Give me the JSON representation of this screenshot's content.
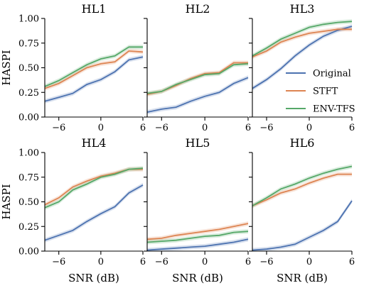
{
  "chart_data": {
    "type": "line",
    "layout": "2x3 small multiples",
    "x_ticks": [
      -6,
      0,
      6
    ],
    "y_ticks": [
      "0.00",
      "0.25",
      "0.50",
      "0.75",
      "1.00"
    ],
    "y_tick_values": [
      0,
      0.25,
      0.5,
      0.75,
      1.0
    ],
    "xlim": [
      -8,
      6
    ],
    "ylim": [
      0,
      1
    ],
    "xlabel": "SNR (dB)",
    "ylabel": "HASPI",
    "x": [
      -8,
      -6,
      -4,
      -2,
      0,
      2,
      4,
      6
    ],
    "legend": {
      "placement": "inside HL3, lower-right",
      "entries": [
        {
          "name": "Original",
          "color": "#4c72b0"
        },
        {
          "name": "STFT",
          "color": "#dd8452"
        },
        {
          "name": "ENV-TFS",
          "color": "#55a868"
        }
      ]
    },
    "panels": [
      {
        "title": "HL1",
        "series": [
          {
            "name": "Original",
            "values": [
              0.16,
              0.2,
              0.24,
              0.33,
              0.38,
              0.46,
              0.58,
              0.61
            ]
          },
          {
            "name": "STFT",
            "values": [
              0.29,
              0.34,
              0.42,
              0.5,
              0.54,
              0.56,
              0.67,
              0.66
            ]
          },
          {
            "name": "ENV-TFS",
            "values": [
              0.31,
              0.37,
              0.45,
              0.53,
              0.59,
              0.62,
              0.71,
              0.71
            ]
          }
        ]
      },
      {
        "title": "HL2",
        "series": [
          {
            "name": "Original",
            "values": [
              0.05,
              0.08,
              0.1,
              0.16,
              0.21,
              0.25,
              0.34,
              0.4
            ]
          },
          {
            "name": "STFT",
            "values": [
              0.23,
              0.26,
              0.32,
              0.39,
              0.44,
              0.45,
              0.55,
              0.55
            ]
          },
          {
            "name": "ENV-TFS",
            "values": [
              0.24,
              0.26,
              0.33,
              0.38,
              0.43,
              0.44,
              0.53,
              0.54
            ]
          }
        ]
      },
      {
        "title": "HL3",
        "series": [
          {
            "name": "Original",
            "values": [
              0.29,
              0.38,
              0.49,
              0.62,
              0.73,
              0.82,
              0.88,
              0.92
            ]
          },
          {
            "name": "STFT",
            "values": [
              0.61,
              0.67,
              0.76,
              0.81,
              0.85,
              0.87,
              0.89,
              0.89
            ]
          },
          {
            "name": "ENV-TFS",
            "values": [
              0.62,
              0.7,
              0.79,
              0.85,
              0.91,
              0.94,
              0.96,
              0.97
            ]
          }
        ]
      },
      {
        "title": "HL4",
        "series": [
          {
            "name": "Original",
            "values": [
              0.11,
              0.16,
              0.21,
              0.3,
              0.38,
              0.45,
              0.59,
              0.67
            ]
          },
          {
            "name": "STFT",
            "values": [
              0.47,
              0.54,
              0.65,
              0.71,
              0.76,
              0.79,
              0.83,
              0.83
            ]
          },
          {
            "name": "ENV-TFS",
            "values": [
              0.44,
              0.5,
              0.62,
              0.68,
              0.75,
              0.78,
              0.83,
              0.84
            ]
          }
        ]
      },
      {
        "title": "HL5",
        "series": [
          {
            "name": "Original",
            "values": [
              0.01,
              0.02,
              0.03,
              0.04,
              0.05,
              0.07,
              0.09,
              0.12
            ]
          },
          {
            "name": "STFT",
            "values": [
              0.12,
              0.13,
              0.16,
              0.18,
              0.2,
              0.22,
              0.25,
              0.28
            ]
          },
          {
            "name": "ENV-TFS",
            "values": [
              0.09,
              0.1,
              0.11,
              0.13,
              0.15,
              0.16,
              0.19,
              0.2
            ]
          }
        ]
      },
      {
        "title": "HL6",
        "series": [
          {
            "name": "Original",
            "values": [
              0.01,
              0.02,
              0.04,
              0.07,
              0.14,
              0.21,
              0.3,
              0.51
            ]
          },
          {
            "name": "STFT",
            "values": [
              0.46,
              0.52,
              0.59,
              0.63,
              0.69,
              0.74,
              0.78,
              0.78
            ]
          },
          {
            "name": "ENV-TFS",
            "values": [
              0.46,
              0.54,
              0.63,
              0.68,
              0.74,
              0.79,
              0.83,
              0.86
            ]
          }
        ]
      }
    ]
  }
}
